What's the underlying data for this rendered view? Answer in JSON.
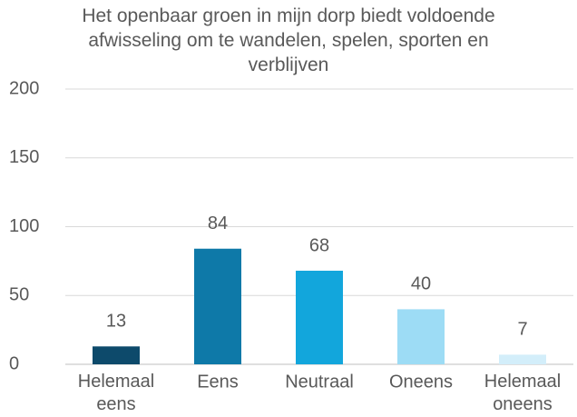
{
  "chart_data": {
    "type": "bar",
    "title": "Het openbaar groen in mijn dorp biedt voldoende afwisseling om te wandelen, spelen, sporten en verblijven",
    "categories": [
      "Helemaal eens",
      "Eens",
      "Neutraal",
      "Oneens",
      "Helemaal oneens"
    ],
    "values": [
      13,
      84,
      68,
      40,
      7
    ],
    "colors": [
      "#0d4a6b",
      "#0e79a8",
      "#12a6dc",
      "#9ddcf5",
      "#d3eefa"
    ],
    "ylim": [
      0,
      200
    ],
    "yticks": [
      0,
      50,
      100,
      150,
      200
    ],
    "grid": true
  }
}
